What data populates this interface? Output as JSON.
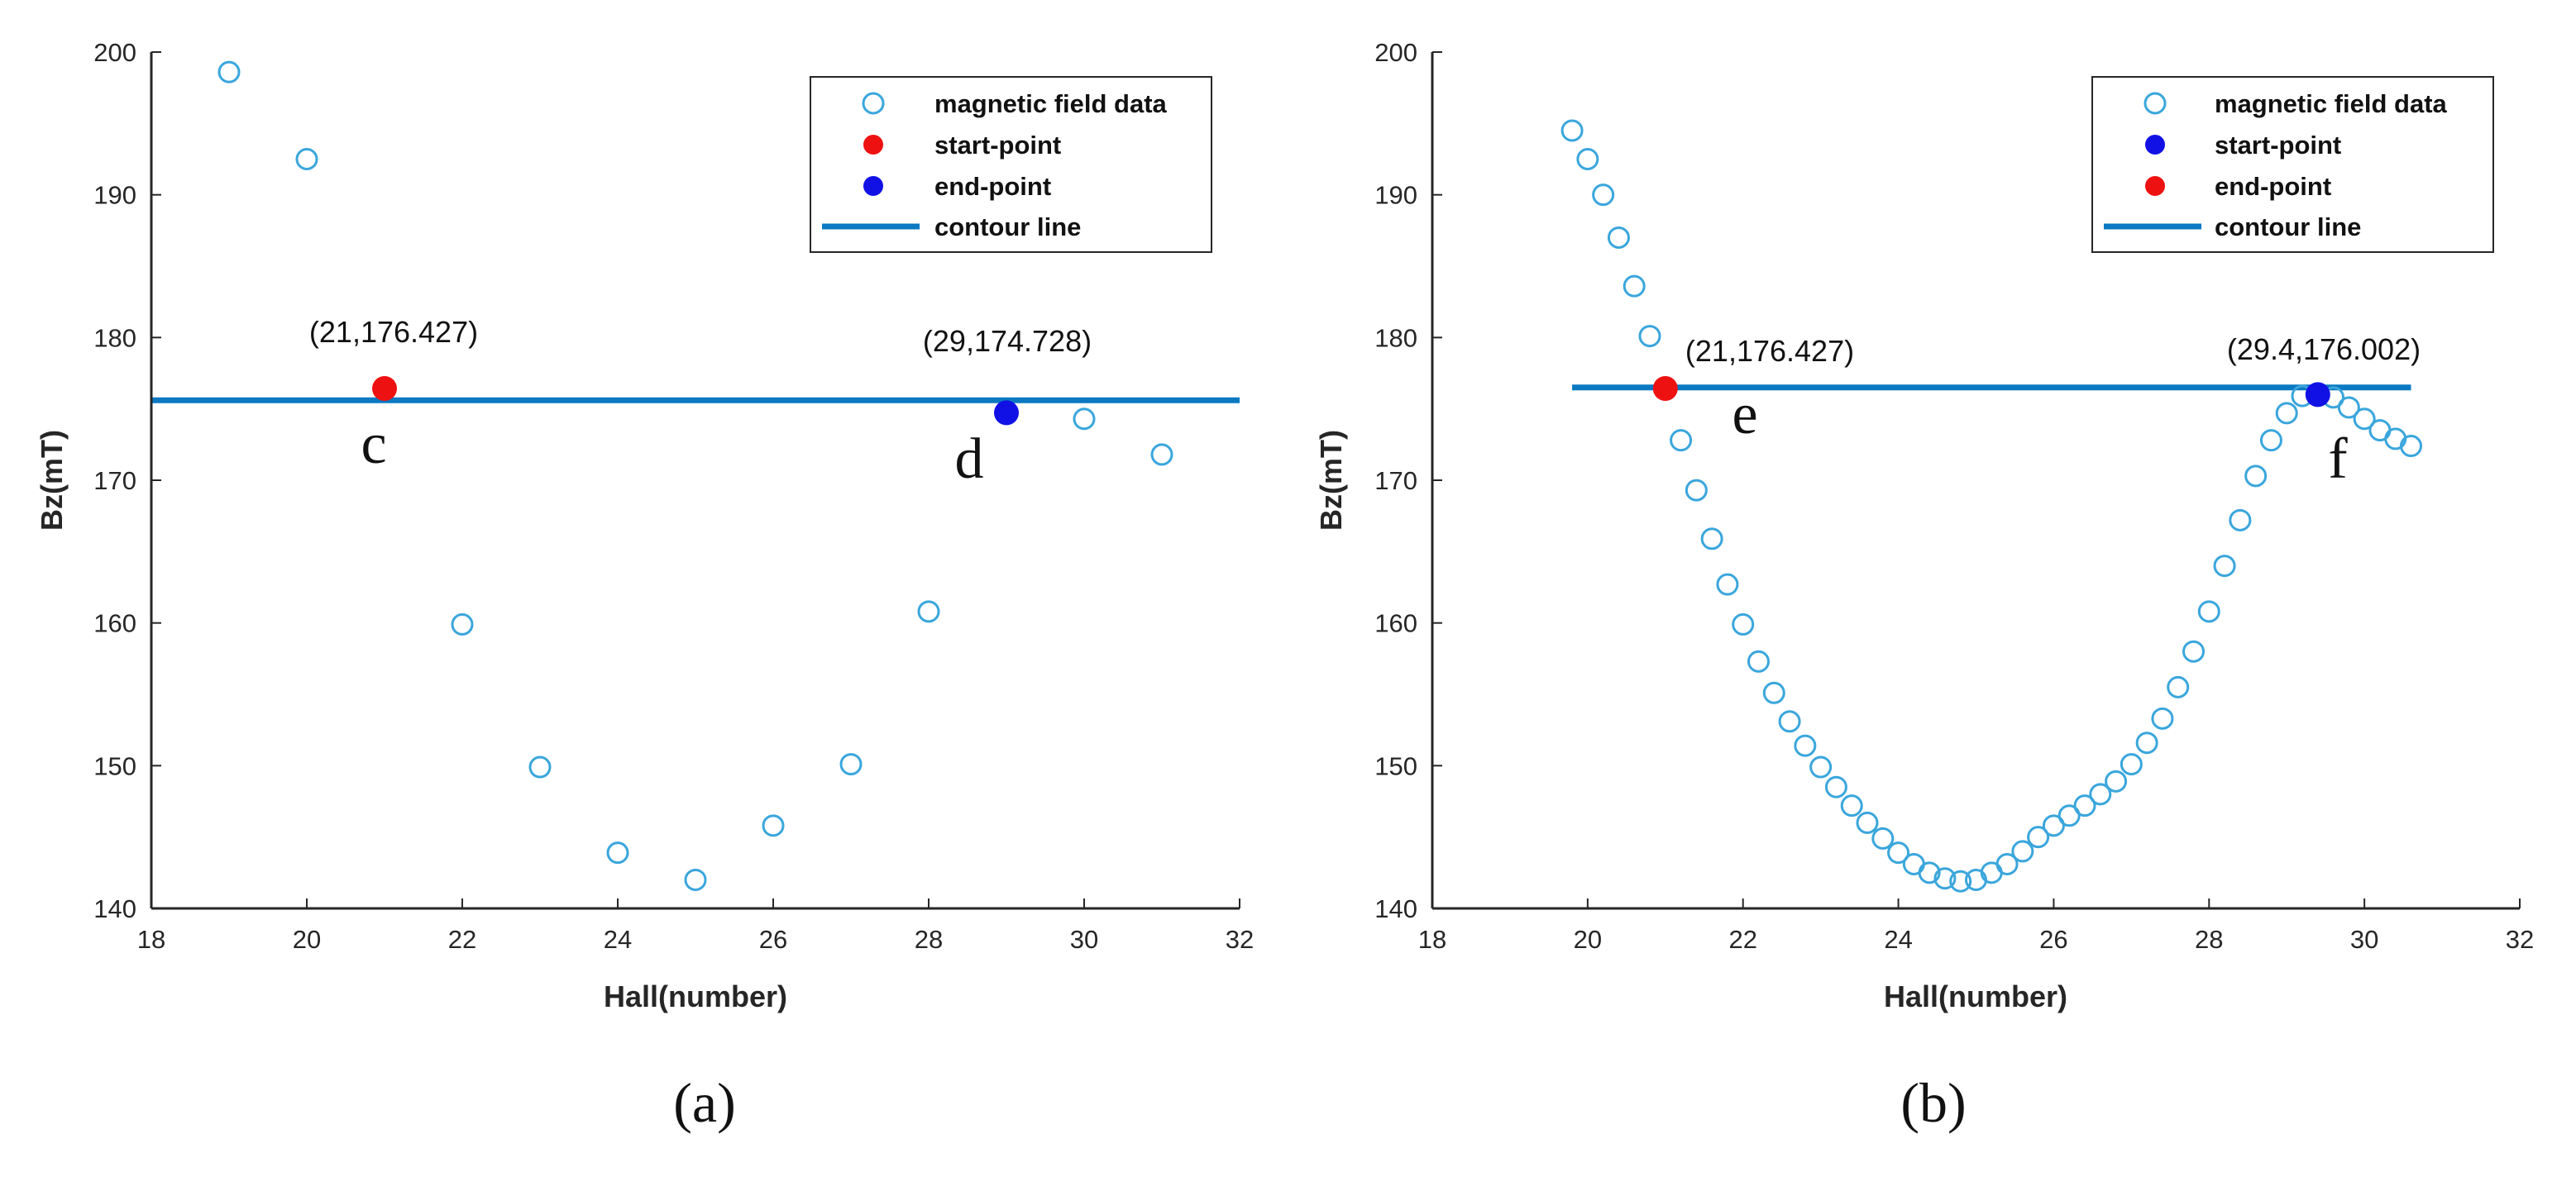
{
  "colors": {
    "marker": "#3aa6dc",
    "contour": "#0a79c2",
    "red": "#ee1111",
    "blue": "#1111e6",
    "axis": "#262626"
  },
  "chart_data": [
    {
      "id": "a",
      "type": "scatter",
      "caption": "(a)",
      "xlabel": "Hall(number)",
      "ylabel": "Bz(mT)",
      "xlim": [
        18,
        32
      ],
      "ylim": [
        140,
        200
      ],
      "xticks": [
        "18",
        "20",
        "22",
        "24",
        "26",
        "28",
        "30",
        "32"
      ],
      "yticks": [
        "140",
        "150",
        "160",
        "170",
        "180",
        "190",
        "200"
      ],
      "series": [
        {
          "name": "magnetic field data",
          "x": [
            19,
            20,
            22,
            23,
            24,
            25,
            26,
            27,
            28,
            30,
            31
          ],
          "y": [
            198.6,
            192.5,
            159.9,
            149.9,
            143.9,
            142.0,
            145.8,
            150.1,
            160.8,
            174.3,
            171.8
          ]
        }
      ],
      "contour": {
        "x": [
          18,
          32
        ],
        "y": 175.6
      },
      "start_point": {
        "x": 21,
        "y": 176.427,
        "label": "(21,176.427)",
        "letter": "c",
        "color": "red"
      },
      "end_point": {
        "x": 29,
        "y": 174.728,
        "label": "(29,174.728)",
        "letter": "d",
        "color": "blue"
      },
      "legend": [
        "magnetic field data",
        "start-point",
        "end-point",
        "contour line"
      ]
    },
    {
      "id": "b",
      "type": "scatter",
      "caption": "(b)",
      "xlabel": "Hall(number)",
      "ylabel": "Bz(mT)",
      "xlim": [
        18,
        32
      ],
      "ylim": [
        140,
        200
      ],
      "xticks": [
        "18",
        "20",
        "22",
        "24",
        "26",
        "28",
        "30",
        "32"
      ],
      "yticks": [
        "140",
        "150",
        "160",
        "170",
        "180",
        "190",
        "200"
      ],
      "series": [
        {
          "name": "magnetic field data",
          "x": [
            19.8,
            20.0,
            20.2,
            20.4,
            20.6,
            20.8,
            21.0,
            21.2,
            21.4,
            21.6,
            21.8,
            22.0,
            22.2,
            22.4,
            22.6,
            22.8,
            23.0,
            23.2,
            23.4,
            23.6,
            23.8,
            24.0,
            24.2,
            24.4,
            24.6,
            24.8,
            25.0,
            25.2,
            25.4,
            25.6,
            25.8,
            26.0,
            26.2,
            26.4,
            26.6,
            26.8,
            27.0,
            27.2,
            27.4,
            27.6,
            27.8,
            28.0,
            28.2,
            28.4,
            28.6,
            28.8,
            29.0,
            29.2,
            29.4,
            29.6,
            29.8,
            30.0,
            30.2,
            30.4,
            30.6
          ],
          "y": [
            194.5,
            192.5,
            190.0,
            187.0,
            183.6,
            180.1,
            176.4,
            172.8,
            169.3,
            165.9,
            162.7,
            159.9,
            157.3,
            155.1,
            153.1,
            151.4,
            149.9,
            148.5,
            147.2,
            146.0,
            144.9,
            143.9,
            143.1,
            142.5,
            142.1,
            141.9,
            142.0,
            142.5,
            143.1,
            144.0,
            145.0,
            145.8,
            146.5,
            147.2,
            148.0,
            148.9,
            150.1,
            151.6,
            153.3,
            155.5,
            158.0,
            160.8,
            164.0,
            167.2,
            170.3,
            172.8,
            174.7,
            175.9,
            176.0,
            175.8,
            175.1,
            174.3,
            173.5,
            172.9,
            172.4
          ]
        }
      ],
      "contour": {
        "x": [
          19.8,
          30.6
        ],
        "y": 176.5
      },
      "start_point": {
        "x": 29.4,
        "y": 176.002,
        "label": "(29.4,176.002)",
        "letter": "f",
        "color": "blue"
      },
      "end_point": {
        "x": 21,
        "y": 176.427,
        "label": "(21,176.427)",
        "letter": "e",
        "color": "red"
      },
      "legend": [
        "magnetic field data",
        "start-point",
        "end-point",
        "contour line"
      ]
    }
  ]
}
